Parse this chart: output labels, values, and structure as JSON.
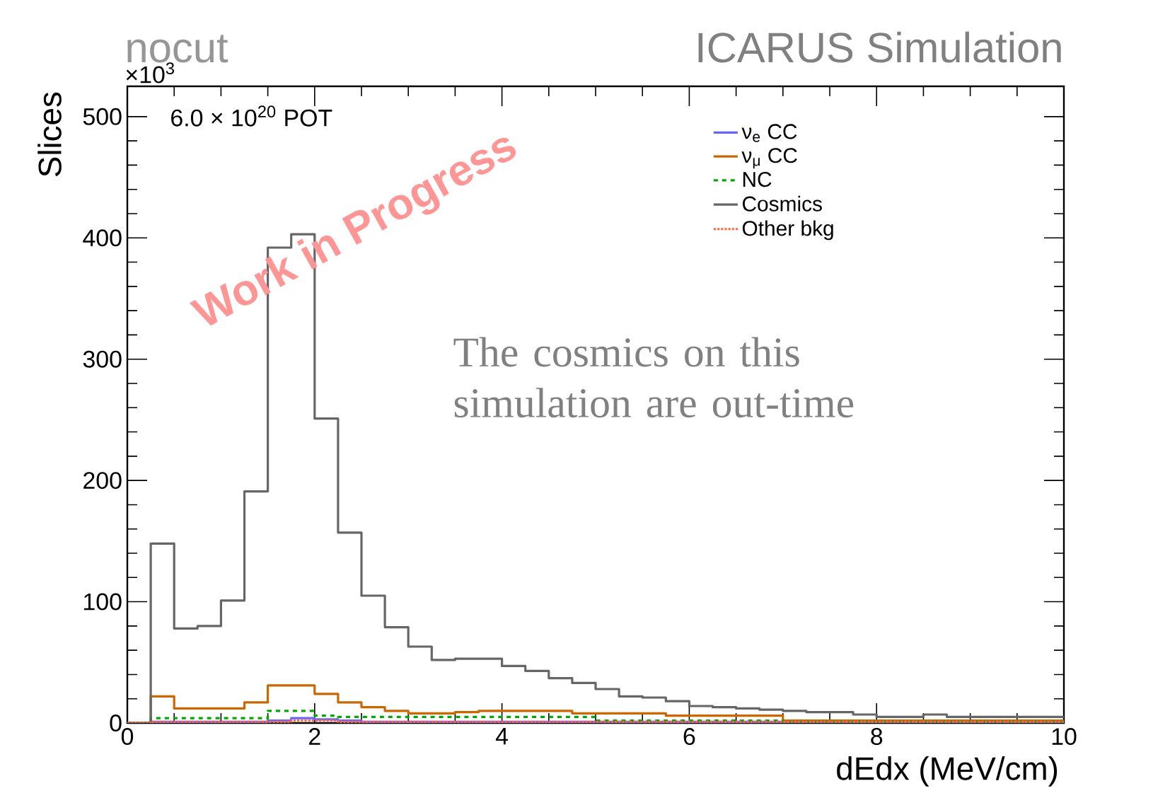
{
  "chart_data": {
    "type": "histogram",
    "title": "nocut",
    "xlabel": "dEdx (MeV/cm)",
    "ylabel": "Slices",
    "bins": [
      0,
      0.25,
      0.5,
      0.75,
      1,
      1.25,
      1.5,
      1.75,
      2,
      2.25,
      2.5,
      2.75,
      3,
      3.25,
      3.5,
      3.75,
      4,
      4.25,
      4.5,
      4.75,
      5,
      5.25,
      5.5,
      5.75,
      6,
      6.25,
      6.5,
      6.75,
      7,
      7.25,
      7.5,
      7.75,
      8,
      8.25,
      8.5,
      8.75,
      9,
      9.25,
      9.5,
      9.75,
      10
    ],
    "series": [
      {
        "name": "ν$_{e}$ CC",
        "color": "#6666ff",
        "line_style": "solid",
        "values": [
          0,
          1,
          1,
          1,
          1,
          1,
          2,
          4,
          3,
          2,
          1,
          1,
          1,
          1,
          1,
          1,
          1,
          1,
          1,
          1,
          1,
          1,
          1,
          1,
          1,
          1,
          1,
          1,
          1,
          1,
          1,
          1,
          1,
          1,
          1,
          1,
          1,
          1,
          1,
          1
        ]
      },
      {
        "name": "ν$_{μ}$ CC",
        "color": "#cc6600",
        "line_style": "solid",
        "values": [
          0,
          22,
          12,
          12,
          12,
          17,
          31,
          31,
          24,
          17,
          13,
          10,
          8,
          8,
          9,
          10,
          10,
          10,
          10,
          8,
          8,
          8,
          8,
          6,
          6,
          6,
          6,
          6,
          2,
          2,
          2,
          2,
          2,
          2,
          2,
          2,
          2,
          2,
          2,
          2
        ]
      },
      {
        "name": "NC",
        "color": "#00aa00",
        "line_style": "dashed",
        "values": [
          0,
          4,
          4,
          4,
          4,
          4,
          10,
          10,
          6,
          5,
          5,
          5,
          5,
          5,
          5,
          5,
          5,
          5,
          5,
          5,
          2,
          2,
          2,
          2,
          2,
          2,
          2,
          2,
          1,
          1,
          1,
          1,
          1,
          1,
          1,
          1,
          1,
          1,
          1,
          1
        ]
      },
      {
        "name": "Cosmics",
        "color": "#666666",
        "line_style": "solid",
        "values": [
          0,
          148,
          78,
          80,
          101,
          191,
          392,
          403,
          251,
          157,
          105,
          79,
          63,
          52,
          53,
          53,
          47,
          43,
          37,
          33,
          28,
          22,
          21,
          18,
          14,
          13,
          12,
          11,
          10,
          9,
          9,
          7,
          5,
          5,
          7,
          5,
          5,
          5,
          5,
          5
        ]
      },
      {
        "name": "Other bkg",
        "color": "#ff6644",
        "line_style": "dotted",
        "values": [
          0,
          1,
          1,
          1,
          1,
          1,
          1,
          2,
          2,
          1,
          1,
          1,
          1,
          1,
          1,
          1,
          1,
          1,
          1,
          1,
          1,
          1,
          1,
          1,
          1,
          1,
          1,
          1,
          1,
          1,
          1,
          1,
          1,
          1,
          1,
          1,
          1,
          1,
          1,
          1
        ]
      }
    ],
    "xlim": [
      0,
      10
    ],
    "ylim": [
      0,
      525
    ],
    "xticks": [
      0,
      2,
      4,
      6,
      8,
      10
    ],
    "yticks": [
      0,
      100,
      200,
      300,
      400,
      500
    ],
    "legend": "top right",
    "annotations": [
      "×10$^{3}$",
      "6.0 × 10$^{20}$ POT",
      "Work in Progress",
      "The cosmics on this simulation are out-time",
      "ICARUS Simulation"
    ]
  }
}
